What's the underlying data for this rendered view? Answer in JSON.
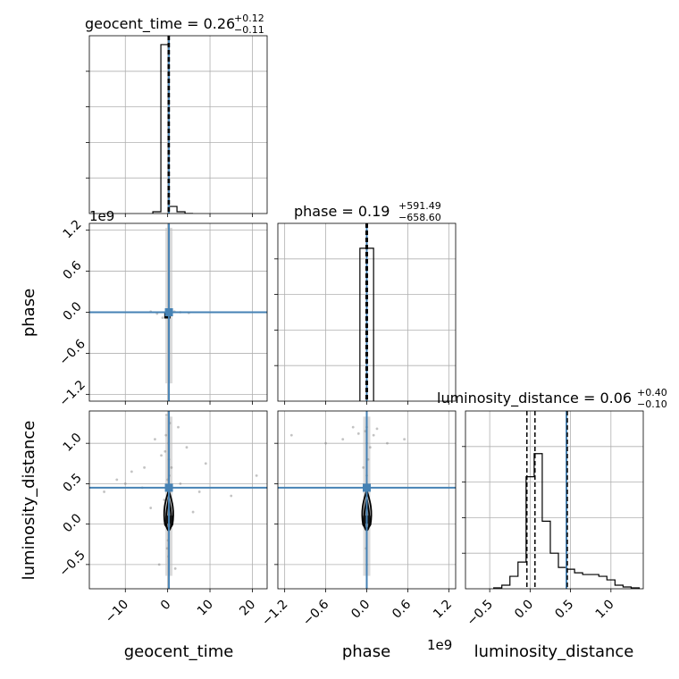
{
  "chart_data": {
    "type": "corner",
    "truth_color": "#4682b4",
    "params": [
      {
        "name": "geocent_time",
        "title_prefix": "geocent_time = 0.26",
        "title_plus": "+0.12",
        "title_minus": "−0.11",
        "range": [
          -18.5,
          23.5
        ],
        "ticks": [
          -10,
          0,
          10,
          20
        ],
        "tick_labels": [
          "−10",
          "0",
          "10",
          "20"
        ],
        "truth": 0.3,
        "quantiles": [
          0.15,
          0.26,
          0.38
        ],
        "hist_edges": [
          -3.5,
          -1.6,
          0.3,
          2.2,
          4.1,
          6.0
        ],
        "hist_counts": [
          0.01,
          0.95,
          0.04,
          0.01,
          0.0
        ]
      },
      {
        "name": "phase",
        "title_prefix": "phase = 0.19",
        "title_plus": "+591.49",
        "title_minus": "−658.60",
        "offset_label": "1e9",
        "range": [
          -1.3,
          1.3
        ],
        "ticks": [
          -1.2,
          -0.6,
          0.0,
          0.6,
          1.2
        ],
        "tick_labels": [
          "−1.2",
          "−0.6",
          "0.0",
          "0.6",
          "1.2"
        ],
        "truth": 0.0,
        "quantiles": [
          -0.01,
          0.0,
          0.01
        ],
        "hist_edges": [
          -0.1,
          0.0,
          0.1
        ],
        "hist_counts": [
          0.86,
          0.86
        ]
      },
      {
        "name": "luminosity_distance",
        "title_prefix": "luminosity_distance = 0.06",
        "title_plus": "+0.40",
        "title_minus": "−0.10",
        "range": [
          -0.8,
          1.4
        ],
        "ticks": [
          -0.5,
          0.0,
          0.5,
          1.0
        ],
        "tick_labels": [
          "−0.5",
          "0.0",
          "0.5",
          "1.0"
        ],
        "truth": 0.45,
        "quantiles": [
          -0.04,
          0.06,
          0.46
        ],
        "hist_edges": [
          -0.45,
          -0.35,
          -0.25,
          -0.15,
          -0.05,
          0.05,
          0.15,
          0.25,
          0.35,
          0.45,
          0.55,
          0.65,
          0.75,
          0.85,
          0.95,
          1.05,
          1.15,
          1.25,
          1.35
        ],
        "hist_counts": [
          0.005,
          0.02,
          0.07,
          0.15,
          0.63,
          0.76,
          0.38,
          0.2,
          0.12,
          0.11,
          0.09,
          0.08,
          0.08,
          0.07,
          0.05,
          0.02,
          0.01,
          0.005
        ]
      }
    ],
    "scatter": {
      "geocent_time_vs_luminosity_distance": {
        "points": [
          [
            -0.2,
            0.05
          ],
          [
            0.1,
            0.3
          ],
          [
            0.3,
            0.8
          ],
          [
            -0.4,
            1.1
          ],
          [
            0.5,
            1.25
          ],
          [
            -0.1,
            -0.3
          ],
          [
            0.2,
            -0.4
          ],
          [
            0.4,
            0.6
          ],
          [
            -0.6,
            0.9
          ],
          [
            0.7,
            0.2
          ],
          [
            -0.3,
            1.35
          ],
          [
            0.2,
            1.0
          ],
          [
            0.0,
            0.55
          ],
          [
            -0.8,
            0.3
          ],
          [
            0.9,
            0.7
          ],
          [
            0.1,
            -0.2
          ],
          [
            -5.5,
            0.7
          ],
          [
            -8.5,
            0.65
          ],
          [
            -12.0,
            0.55
          ],
          [
            -10.0,
            0.5
          ],
          [
            -6.0,
            0.45
          ],
          [
            3.0,
            0.5
          ],
          [
            6.0,
            0.15
          ],
          [
            9.0,
            0.75
          ],
          [
            15.0,
            0.35
          ],
          [
            21.0,
            0.6
          ],
          [
            -15.0,
            0.4
          ],
          [
            -3.0,
            1.05
          ],
          [
            2.5,
            1.2
          ],
          [
            -2.0,
            -0.5
          ],
          [
            1.8,
            -0.55
          ],
          [
            4.5,
            0.95
          ],
          [
            -4.0,
            0.2
          ],
          [
            7.5,
            0.4
          ],
          [
            -1.5,
            0.85
          ],
          [
            1.2,
            0.1
          ]
        ],
        "contours": [
          [
            0.25,
            0.12,
            -0.05,
            0.2,
            0.42
          ],
          [
            0.25,
            0.08,
            -0.08,
            0.12,
            0.32
          ]
        ]
      },
      "phase_vs_luminosity_distance": {
        "points": [
          [
            0.0,
            0.1
          ],
          [
            0.0,
            0.6
          ],
          [
            0.0,
            1.0
          ],
          [
            0.0,
            1.2
          ],
          [
            0.01,
            0.3
          ],
          [
            -0.01,
            -0.3
          ],
          [
            0.02,
            0.8
          ],
          [
            -0.02,
            1.15
          ],
          [
            0.1,
            1.1
          ],
          [
            -0.12,
            1.12
          ],
          [
            0.3,
            1.0
          ],
          [
            -0.35,
            1.05
          ],
          [
            -0.6,
            1.0
          ],
          [
            0.55,
            1.05
          ],
          [
            -1.1,
            1.1
          ],
          [
            0.15,
            1.18
          ],
          [
            -0.2,
            1.2
          ],
          [
            0.0,
            -0.5
          ],
          [
            0.05,
            0.95
          ],
          [
            -0.05,
            0.7
          ]
        ],
        "contours": [
          [
            0.0,
            0.12,
            -0.05,
            0.2,
            0.42
          ],
          [
            0.0,
            0.08,
            -0.08,
            0.12,
            0.32
          ]
        ]
      },
      "geocent_time_vs_phase": {
        "points": [
          [
            -1.2,
            -0.08
          ],
          [
            -0.5,
            -0.05
          ],
          [
            0.8,
            0.02
          ],
          [
            0.0,
            0.0
          ],
          [
            1.6,
            0.01
          ],
          [
            -2.5,
            -0.02
          ],
          [
            3.0,
            0.0
          ],
          [
            -4.0,
            0.01
          ],
          [
            5.0,
            -0.01
          ]
        ],
        "contours": []
      }
    }
  }
}
